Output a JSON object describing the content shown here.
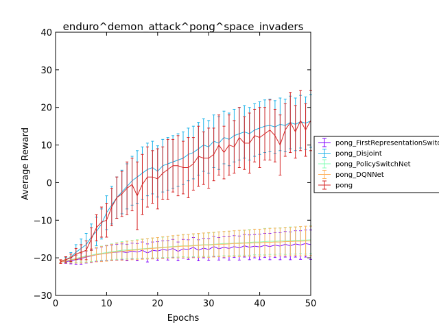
{
  "chart_data": {
    "type": "line",
    "title": "enduro^demon_attack^pong^space_invaders",
    "xlabel": "Epochs",
    "ylabel": "Average Reward",
    "xlim": [
      0,
      50
    ],
    "ylim": [
      -30,
      40
    ],
    "xticks": [
      "0",
      "10",
      "20",
      "30",
      "40",
      "50"
    ],
    "yticks": [
      "−30",
      "−20",
      "−10",
      "0",
      "10",
      "20",
      "30",
      "40"
    ],
    "grid": false,
    "legend_position": "right, outside plot",
    "series": [
      {
        "name": "pong_FirstRepresentationSwitch",
        "color": "#7f00ff",
        "x": [
          1,
          2,
          3,
          4,
          5,
          6,
          7,
          8,
          9,
          10,
          11,
          12,
          13,
          14,
          15,
          16,
          17,
          18,
          19,
          20,
          21,
          22,
          23,
          24,
          25,
          26,
          27,
          28,
          29,
          30,
          31,
          32,
          33,
          34,
          35,
          36,
          37,
          38,
          39,
          40,
          41,
          42,
          43,
          44,
          45,
          46,
          47,
          48,
          49,
          50
        ],
        "y": [
          -21,
          -21,
          -20.8,
          -20.5,
          -20.2,
          -19.8,
          -19.5,
          -19.2,
          -19,
          -18.8,
          -18.6,
          -18.5,
          -18.4,
          -18.6,
          -18.2,
          -18.5,
          -18,
          -18.7,
          -18,
          -18.2,
          -17.8,
          -18,
          -17.5,
          -18.3,
          -17.6,
          -17.8,
          -17.2,
          -18,
          -17.4,
          -17.8,
          -17,
          -17.6,
          -17.2,
          -17.5,
          -17,
          -17.4,
          -16.8,
          -17.2,
          -16.9,
          -17.1,
          -16.7,
          -17,
          -16.6,
          -16.9,
          -16.4,
          -16.8,
          -16.3,
          -16.6,
          -16.2,
          -16.5
        ],
        "err": [
          0.3,
          0.5,
          0.8,
          1.2,
          1.5,
          1.6,
          1.8,
          1.8,
          1.9,
          2,
          2,
          2.1,
          2.1,
          2.2,
          2.1,
          2.3,
          2.2,
          2.4,
          2.2,
          2.5,
          2.3,
          2.6,
          2.4,
          2.5,
          2.5,
          2.6,
          2.6,
          2.8,
          2.6,
          2.9,
          2.7,
          3,
          2.8,
          3.1,
          2.9,
          3.2,
          3,
          3.3,
          3.1,
          3.4,
          3.2,
          3.5,
          3.3,
          3.6,
          3.4,
          3.7,
          3.5,
          3.8,
          3.6,
          3.9
        ]
      },
      {
        "name": "pong_Disjoint",
        "color": "#1ab2e8",
        "x": [
          1,
          2,
          3,
          4,
          5,
          6,
          7,
          8,
          9,
          10,
          11,
          12,
          13,
          14,
          15,
          16,
          17,
          18,
          19,
          20,
          21,
          22,
          23,
          24,
          25,
          26,
          27,
          28,
          29,
          30,
          31,
          32,
          33,
          34,
          35,
          36,
          37,
          38,
          39,
          40,
          41,
          42,
          43,
          44,
          45,
          46,
          47,
          48,
          49,
          50
        ],
        "y": [
          -21,
          -20.5,
          -19.8,
          -18.5,
          -17.5,
          -16.5,
          -14.5,
          -13,
          -11,
          -8,
          -6,
          -4,
          -2.5,
          -1,
          0.5,
          1.5,
          2.5,
          3.5,
          4,
          3,
          4.5,
          5,
          5.5,
          6,
          6.5,
          7.5,
          8,
          9,
          10,
          9.5,
          11,
          10.5,
          12,
          11.5,
          12.5,
          13,
          13.5,
          13,
          14,
          14.5,
          15,
          15.2,
          14.8,
          15.5,
          15.2,
          16,
          15.5,
          16.2,
          15.8,
          16.4
        ],
        "err": [
          0.3,
          0.6,
          1.2,
          2,
          2.5,
          3,
          3.5,
          3.8,
          4,
          4.5,
          5,
          5.5,
          5.8,
          6,
          6.5,
          7,
          7,
          7,
          7,
          6.8,
          7,
          7,
          7,
          7,
          7,
          7,
          7,
          7,
          7,
          7,
          7,
          7,
          7,
          7,
          7,
          7,
          7,
          7,
          7,
          7,
          7,
          7,
          7,
          7,
          7,
          7,
          7,
          7,
          7,
          7
        ]
      },
      {
        "name": "pong_PolicySwitchNet",
        "color": "#80ffb4",
        "x": [
          1,
          2,
          3,
          4,
          5,
          6,
          7,
          8,
          9,
          10,
          11,
          12,
          13,
          14,
          15,
          16,
          17,
          18,
          19,
          20,
          21,
          22,
          23,
          24,
          25,
          26,
          27,
          28,
          29,
          30,
          31,
          32,
          33,
          34,
          35,
          36,
          37,
          38,
          39,
          40,
          41,
          42,
          43,
          44,
          45,
          46,
          47,
          48,
          49,
          50
        ],
        "y": [
          -21,
          -20.8,
          -20.5,
          -20.2,
          -19.8,
          -19.6,
          -19.3,
          -19,
          -18.8,
          -18.6,
          -18.4,
          -18.2,
          -18,
          -17.9,
          -17.8,
          -17.7,
          -17.6,
          -17.5,
          -17.4,
          -17.3,
          -17.2,
          -17.1,
          -17,
          -16.9,
          -16.8,
          -16.8,
          -16.7,
          -16.6,
          -16.5,
          -16.5,
          -16.4,
          -16.3,
          -16.2,
          -16.2,
          -16.1,
          -16,
          -16,
          -15.9,
          -15.8,
          -15.8,
          -15.7,
          -15.6,
          -15.6,
          -15.5,
          -15.5,
          -15.4,
          -15.4,
          -15.3,
          -15.3,
          -15.2
        ],
        "err": [
          0.3,
          0.5,
          0.8,
          1,
          1.3,
          1.5,
          1.7,
          1.8,
          1.9,
          2,
          2.1,
          2.2,
          2.3,
          2.4,
          2.4,
          2.5,
          2.5,
          2.6,
          2.6,
          2.7,
          2.7,
          2.8,
          2.8,
          2.9,
          2.9,
          3,
          3,
          3,
          3.1,
          3.1,
          3.1,
          3.2,
          3.2,
          3.2,
          3.3,
          3.3,
          3.3,
          3.4,
          3.4,
          3.4,
          3.5,
          3.5,
          3.5,
          3.5,
          3.6,
          3.6,
          3.6,
          3.6,
          3.7,
          3.7
        ]
      },
      {
        "name": "pong_DQNNet",
        "color": "#ffb360",
        "x": [
          1,
          2,
          3,
          4,
          5,
          6,
          7,
          8,
          9,
          10,
          11,
          12,
          13,
          14,
          15,
          16,
          17,
          18,
          19,
          20,
          21,
          22,
          23,
          24,
          25,
          26,
          27,
          28,
          29,
          30,
          31,
          32,
          33,
          34,
          35,
          36,
          37,
          38,
          39,
          40,
          41,
          42,
          43,
          44,
          45,
          46,
          47,
          48,
          49,
          50
        ],
        "y": [
          -21,
          -20.9,
          -20.6,
          -20.3,
          -20,
          -19.7,
          -19.4,
          -19.2,
          -19,
          -18.8,
          -18.6,
          -18.4,
          -18.3,
          -18.1,
          -18,
          -17.9,
          -17.7,
          -17.6,
          -17.5,
          -17.4,
          -17.3,
          -17.2,
          -17.1,
          -17,
          -16.9,
          -16.9,
          -16.8,
          -16.7,
          -16.6,
          -16.6,
          -16.5,
          -16.4,
          -16.4,
          -16.3,
          -16.2,
          -16.2,
          -16.1,
          -16.1,
          -16,
          -16,
          -15.9,
          -15.9,
          -15.8,
          -15.8,
          -15.7,
          -15.7,
          -15.6,
          -15.6,
          -15.5,
          -15.5
        ],
        "err": [
          0.3,
          0.5,
          0.8,
          1.1,
          1.4,
          1.6,
          1.8,
          1.9,
          2,
          2.1,
          2.2,
          2.3,
          2.4,
          2.5,
          2.5,
          2.6,
          2.7,
          2.7,
          2.8,
          2.8,
          2.9,
          2.9,
          3,
          3,
          3.1,
          3.1,
          3.2,
          3.2,
          3.2,
          3.3,
          3.3,
          3.3,
          3.4,
          3.4,
          3.4,
          3.5,
          3.5,
          3.5,
          3.6,
          3.6,
          3.6,
          3.7,
          3.7,
          3.7,
          3.8,
          3.8,
          3.8,
          3.9,
          3.9,
          3.9
        ]
      },
      {
        "name": "pong",
        "color": "#d62020",
        "x": [
          1,
          2,
          3,
          4,
          5,
          6,
          7,
          8,
          9,
          10,
          11,
          12,
          13,
          14,
          15,
          16,
          17,
          18,
          19,
          20,
          21,
          22,
          23,
          24,
          25,
          26,
          27,
          28,
          29,
          30,
          31,
          32,
          33,
          34,
          35,
          36,
          37,
          38,
          39,
          40,
          41,
          42,
          43,
          44,
          45,
          46,
          47,
          48,
          49,
          50
        ],
        "y": [
          -21,
          -20.5,
          -20,
          -19,
          -18.5,
          -18,
          -15,
          -12,
          -10.5,
          -10,
          -6.5,
          -4,
          -3,
          -1.5,
          -0.5,
          -3.5,
          -0.5,
          1.5,
          1.5,
          1,
          2.5,
          3.5,
          4.5,
          4.5,
          4,
          4,
          5,
          7,
          6.5,
          6.5,
          7.5,
          10,
          8,
          10,
          9.5,
          12,
          10.5,
          10.5,
          12.5,
          12,
          13,
          14,
          12.5,
          10,
          14,
          16,
          13.5,
          16.5,
          14,
          16.5
        ],
        "err": [
          0.5,
          0.8,
          1,
          1.5,
          2,
          2.5,
          3,
          3.5,
          4,
          4.5,
          5,
          5.5,
          6,
          7,
          7,
          9,
          8,
          8,
          7,
          8,
          7,
          8,
          7,
          8,
          7,
          8,
          7,
          8,
          7,
          8,
          7,
          8,
          7,
          8,
          7,
          8,
          7,
          8,
          7,
          8,
          7,
          8,
          7,
          8,
          7,
          8,
          7,
          8,
          7,
          8
        ]
      }
    ]
  }
}
